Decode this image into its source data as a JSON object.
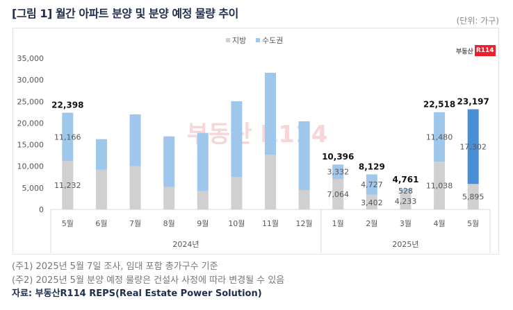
{
  "title": "[그림 1] 월간 아파트 분양 및 분양 예정 물량 추이",
  "unit": "(단위: 가구)",
  "logo": {
    "text": "부동산",
    "badge": "R114"
  },
  "watermark": "부동산 R114",
  "notes": [
    "(주1) 2025년 5월 7일 조사, 임대 포함 총가구수 기준",
    "(주2) 2025년 5월 분양 예정 물량은 건설사 사정에 따라 변경될 수 있음"
  ],
  "source": "자료: 부동산R114 REPS(Real Estate Power Solution)",
  "chart_data": {
    "type": "bar",
    "stacked": true,
    "categories": [
      "5월",
      "6월",
      "7월",
      "8월",
      "9월",
      "10월",
      "11월",
      "12월",
      "1월",
      "2월",
      "3월",
      "4월",
      "5월"
    ],
    "groups": [
      {
        "label": "2024년",
        "count": 8
      },
      {
        "label": "2025년",
        "count": 5
      }
    ],
    "series": [
      {
        "name": "지방",
        "color": "#d0d0d0",
        "values": [
          11232,
          9210,
          10010,
          5190,
          4230,
          7490,
          12690,
          4440,
          7064,
          3402,
          4233,
          11038,
          5895
        ],
        "labels": [
          "11,232",
          "",
          "",
          "",
          "",
          "",
          "",
          "",
          "7,064",
          "3,402",
          "4,233",
          "11,038",
          "5,895"
        ]
      },
      {
        "name": "수도권",
        "color": "#9fc7ec",
        "highlight_last_color": "#4a8fd6",
        "values": [
          11166,
          7060,
          11990,
          11730,
          13490,
          17560,
          18950,
          15960,
          3332,
          4727,
          528,
          11480,
          17302
        ],
        "labels": [
          "11,166",
          "",
          "",
          "",
          "",
          "",
          "",
          "",
          "3,332",
          "4,727",
          "528",
          "11,480",
          "17,302"
        ]
      }
    ],
    "totals": [
      "22,398",
      "",
      "",
      "",
      "",
      "",
      "",
      "",
      "10,396",
      "8,129",
      "4,761",
      "22,518",
      "23,197"
    ],
    "ylim": [
      0,
      35000
    ],
    "yticks": [
      "0",
      "5,000",
      "10,000",
      "15,000",
      "20,000",
      "25,000",
      "30,000",
      "35,000"
    ],
    "legend": "top-center",
    "grid": false
  }
}
